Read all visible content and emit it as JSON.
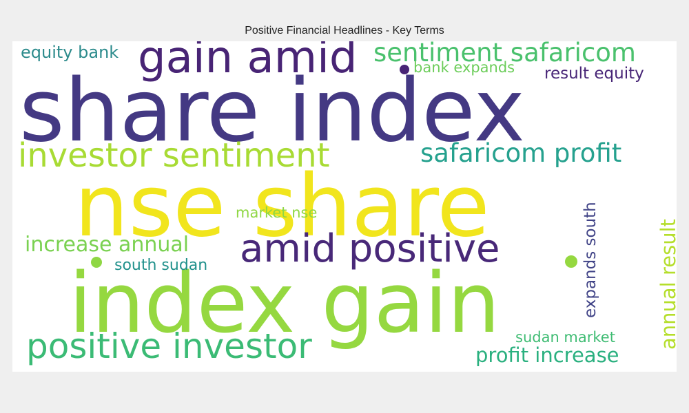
{
  "chart_data": {
    "type": "wordcloud",
    "title": "Positive Financial Headlines - Key Terms",
    "terms": [
      {
        "text": "share index",
        "weight": 100,
        "color": "#443983",
        "orientation": "horizontal"
      },
      {
        "text": "nse share",
        "weight": 98,
        "color": "#f1e51d",
        "orientation": "horizontal"
      },
      {
        "text": "index gain",
        "weight": 96,
        "color": "#95d840",
        "orientation": "horizontal"
      },
      {
        "text": "gain amid",
        "weight": 42,
        "color": "#482475",
        "orientation": "horizontal"
      },
      {
        "text": "investor sentiment",
        "weight": 38,
        "color": "#a8db34",
        "orientation": "horizontal"
      },
      {
        "text": "amid positive",
        "weight": 36,
        "color": "#482878",
        "orientation": "horizontal"
      },
      {
        "text": "positive investor",
        "weight": 36,
        "color": "#3bbb75",
        "orientation": "horizontal"
      },
      {
        "text": "sentiment safaricom",
        "weight": 27,
        "color": "#4ac16d",
        "orientation": "horizontal"
      },
      {
        "text": "safaricom profit",
        "weight": 27,
        "color": "#25a18e",
        "orientation": "horizontal"
      },
      {
        "text": "increase annual",
        "weight": 22,
        "color": "#7ad151",
        "orientation": "horizontal"
      },
      {
        "text": "profit increase",
        "weight": 22,
        "color": "#2ab07f",
        "orientation": "horizontal"
      },
      {
        "text": "annual result",
        "weight": 22,
        "color": "#b5de2b",
        "orientation": "vertical"
      },
      {
        "text": "expands south",
        "weight": 18,
        "color": "#414487",
        "orientation": "vertical"
      },
      {
        "text": "equity bank",
        "weight": 17,
        "color": "#2c8b8c",
        "orientation": "horizontal"
      },
      {
        "text": "result equity",
        "weight": 17,
        "color": "#482677",
        "orientation": "horizontal"
      },
      {
        "text": "bank expands",
        "weight": 16,
        "color": "#6ccd5a",
        "orientation": "horizontal"
      },
      {
        "text": "south sudan",
        "weight": 16,
        "color": "#21918c",
        "orientation": "horizontal"
      },
      {
        "text": "sudan market",
        "weight": 16,
        "color": "#3fbc73",
        "orientation": "horizontal"
      },
      {
        "text": "market nse",
        "weight": 15,
        "color": "#8fd744",
        "orientation": "horizontal"
      }
    ],
    "dots": [
      {
        "color": "#482475"
      },
      {
        "color": "#8fd744"
      },
      {
        "color": "#95d840"
      }
    ]
  }
}
